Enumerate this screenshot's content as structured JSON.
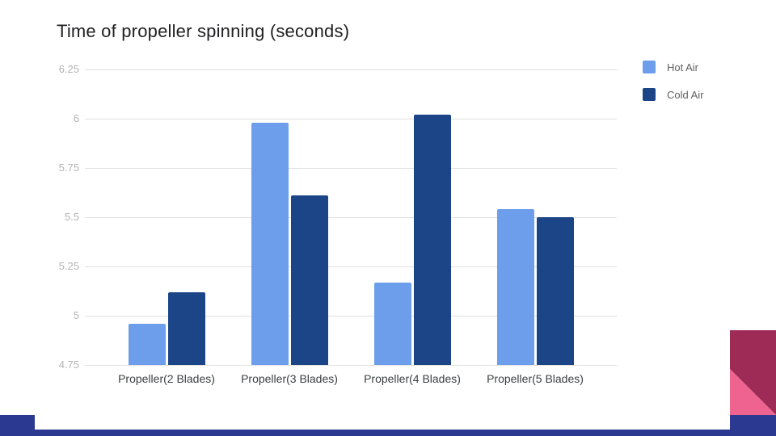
{
  "chart_data": {
    "type": "bar",
    "title": "Time of propeller spinning (seconds)",
    "categories": [
      "Propeller(2 Blades)",
      "Propeller(3 Blades)",
      "Propeller(4 Blades)",
      "Propeller(5 Blades)"
    ],
    "series": [
      {
        "name": "Hot Air",
        "color": "#6d9eeb",
        "values": [
          4.96,
          5.98,
          5.17,
          5.54
        ]
      },
      {
        "name": "Cold Air",
        "color": "#1c4587",
        "values": [
          5.12,
          5.61,
          6.02,
          5.5
        ]
      }
    ],
    "ylim": [
      4.75,
      6.25
    ],
    "yticks": [
      "4.75",
      "5",
      "5.25",
      "5.5",
      "5.75",
      "6",
      "6.25"
    ],
    "xlabel": "",
    "ylabel": "",
    "grid": true,
    "legend_position": "right",
    "gridline_color": "#e0e0e0",
    "ytick_color": "#b3b3b3",
    "category_color": "#3c4043",
    "legend_text_color": "#616161",
    "background": "#ffffff"
  },
  "decorations": {
    "ribbon_color": "#2b3a90",
    "corner_dark_color": "#9e2b56",
    "corner_pink_color": "#ee6390"
  }
}
